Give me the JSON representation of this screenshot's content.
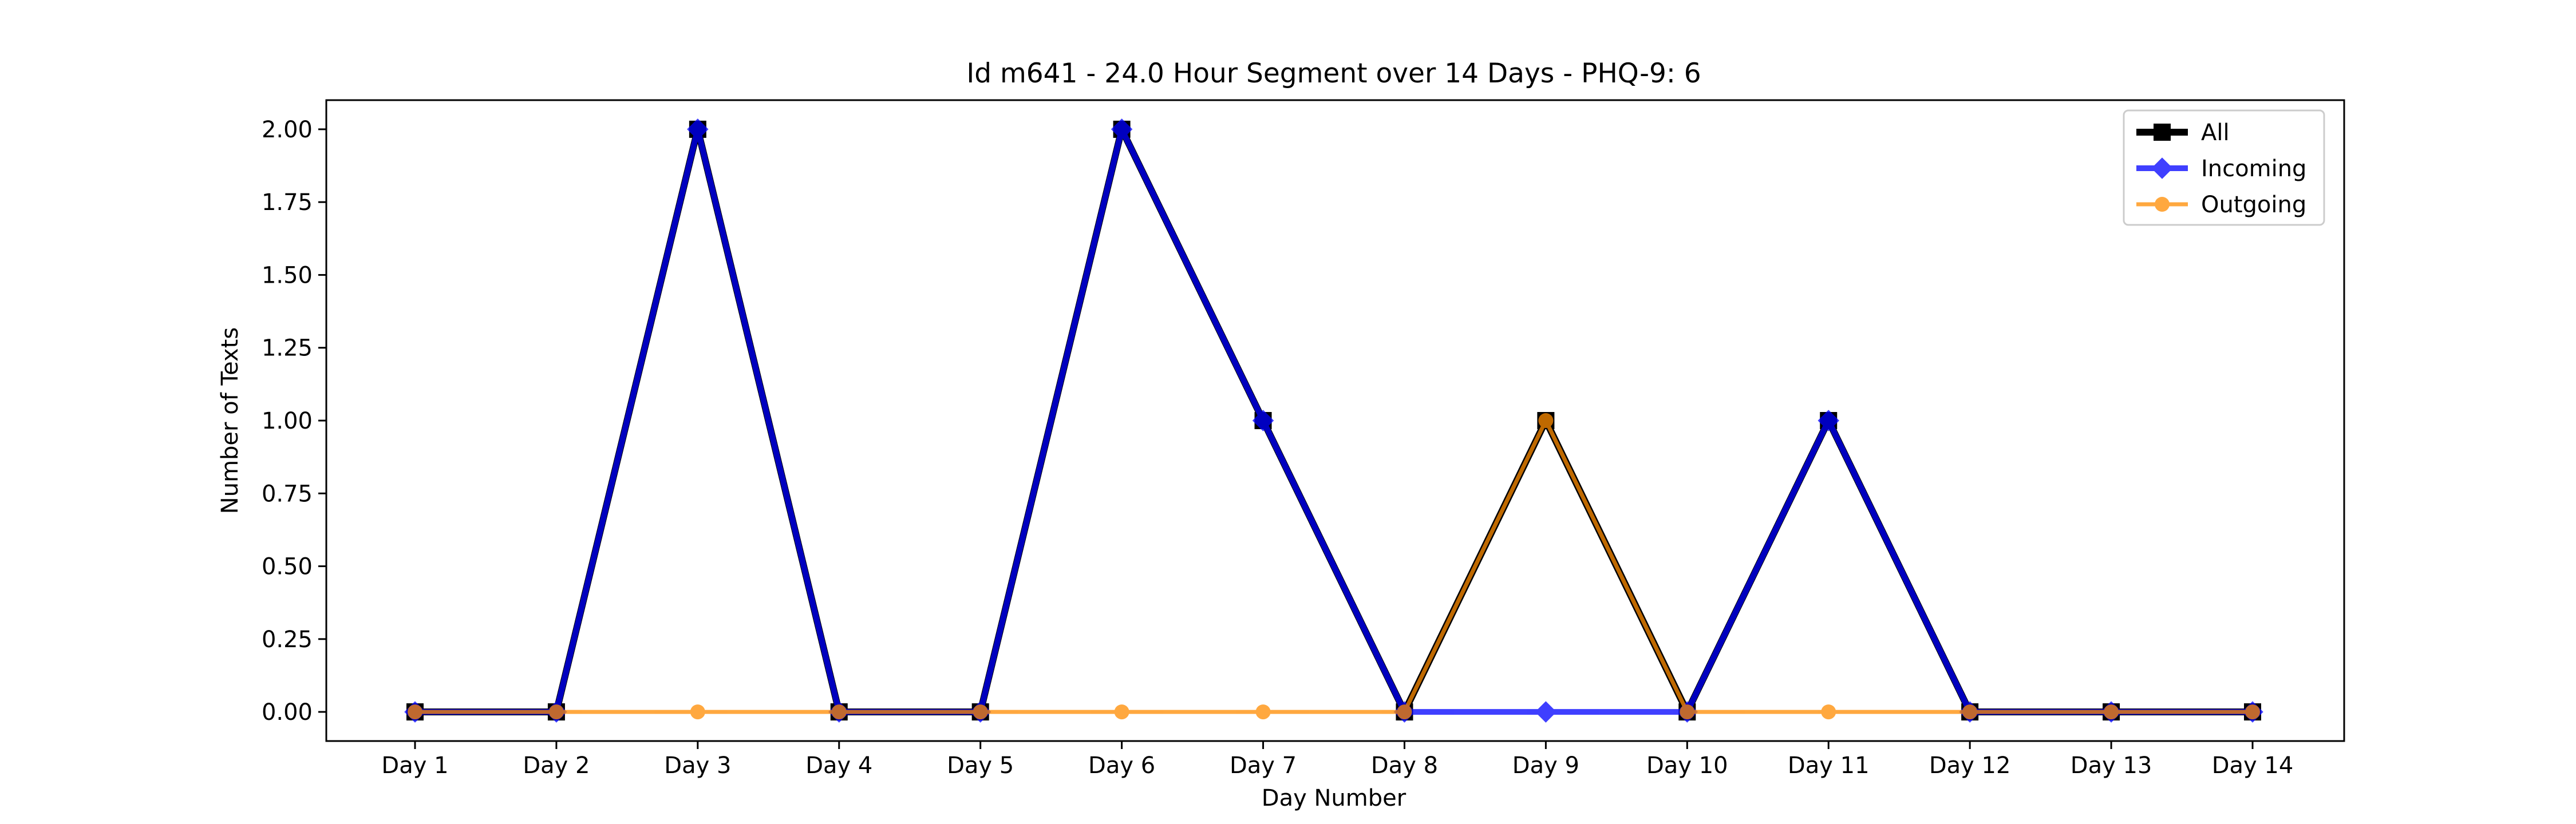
{
  "chart_data": {
    "type": "line",
    "title": "Id m641 - 24.0 Hour Segment over 14 Days - PHQ-9: 6",
    "xlabel": "Day Number",
    "ylabel": "Number of Texts",
    "categories": [
      "Day 1",
      "Day 2",
      "Day 3",
      "Day 4",
      "Day 5",
      "Day 6",
      "Day 7",
      "Day 8",
      "Day 9",
      "Day 10",
      "Day 11",
      "Day 12",
      "Day 13",
      "Day 14"
    ],
    "ylim": [
      -0.1,
      2.1
    ],
    "yticks": [
      "0.00",
      "0.25",
      "0.50",
      "0.75",
      "1.00",
      "1.25",
      "1.50",
      "1.75",
      "2.00"
    ],
    "grid": false,
    "legend_position": "top-right",
    "series": [
      {
        "name": "All",
        "color": "#000000",
        "marker": "square",
        "values": [
          0,
          0,
          2,
          0,
          0,
          2,
          1,
          0,
          1,
          0,
          1,
          0,
          0,
          0
        ]
      },
      {
        "name": "Incoming",
        "color": "#0000ff",
        "marker": "diamond",
        "values": [
          0,
          0,
          2,
          0,
          0,
          2,
          1,
          0,
          0,
          0,
          1,
          0,
          0,
          0
        ]
      },
      {
        "name": "Outgoing",
        "color": "#ff8c00",
        "marker": "circle",
        "values": [
          0,
          0,
          0,
          0,
          0,
          0,
          0,
          0,
          1,
          0,
          0,
          0,
          0,
          0
        ]
      }
    ]
  }
}
